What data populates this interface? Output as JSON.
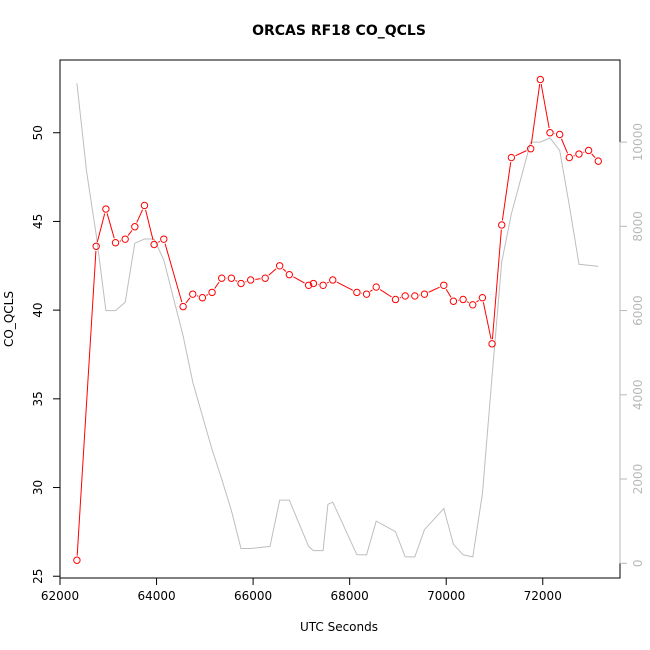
{
  "chart_data": {
    "type": "line",
    "title": "ORCAS RF18 CO_QCLS",
    "xlabel": "UTC Seconds",
    "ylabel": "CO_QCLS",
    "xlim": [
      62000,
      73600
    ],
    "ylim": [
      24.9,
      54.1
    ],
    "y2lim": [
      -350,
      11950
    ],
    "x_ticks": [
      62000,
      64000,
      66000,
      68000,
      70000,
      72000
    ],
    "x_tick_labels": [
      "62000",
      "64000",
      "66000",
      "68000",
      "70000",
      "72000"
    ],
    "y_ticks": [
      25,
      30,
      35,
      40,
      45,
      50
    ],
    "y_tick_labels": [
      "25",
      "30",
      "35",
      "40",
      "45",
      "50"
    ],
    "y2_ticks": [
      0,
      2000,
      4000,
      6000,
      8000,
      10000
    ],
    "y2_tick_labels": [
      "0",
      "2000",
      "4000",
      "6000",
      "8000",
      "10000"
    ],
    "colors": {
      "primary": "#ff0000",
      "secondary": "#bebebe"
    },
    "series": [
      {
        "axis": "left",
        "style": "line-points",
        "x": [
          62350,
          62750,
          62950,
          63150,
          63350,
          63550,
          63750,
          63950,
          64150,
          64550,
          64750,
          64950,
          65150,
          65350,
          65550,
          65750,
          65950,
          66250,
          66550,
          66750,
          67150,
          67250,
          67450,
          67650,
          68150,
          68350,
          68550,
          68950,
          69150,
          69350,
          69550,
          69950,
          70150,
          70350,
          70550,
          70750,
          70950,
          71150,
          71350,
          71750,
          71950,
          72150,
          72350,
          72550,
          72750,
          72950,
          73150
        ],
        "values": [
          25.9,
          43.6,
          45.7,
          43.8,
          44.0,
          44.7,
          45.9,
          43.7,
          44.0,
          40.2,
          40.9,
          40.7,
          41.0,
          41.8,
          41.8,
          41.5,
          41.7,
          41.8,
          42.5,
          42.0,
          41.4,
          41.5,
          41.4,
          41.7,
          41.0,
          40.9,
          41.3,
          40.6,
          40.8,
          40.8,
          40.9,
          41.4,
          40.5,
          40.6,
          40.3,
          40.7,
          38.1,
          44.8,
          48.6,
          49.1,
          53.0,
          50.0,
          49.9,
          48.6,
          48.8,
          49.0,
          48.4
        ]
      },
      {
        "axis": "right",
        "style": "line",
        "x": [
          62350,
          62550,
          62750,
          62950,
          63150,
          63350,
          63550,
          63750,
          63950,
          64150,
          64350,
          64550,
          64750,
          64950,
          65150,
          65350,
          65550,
          65750,
          65950,
          66350,
          66550,
          66750,
          67150,
          67250,
          67450,
          67550,
          67650,
          68150,
          68350,
          68550,
          68950,
          69150,
          69350,
          69550,
          69950,
          70150,
          70350,
          70550,
          70750,
          70950,
          71150,
          71350,
          71750,
          71950,
          72150,
          72350,
          72550,
          72750,
          73150
        ],
        "values": [
          11400,
          9300,
          7800,
          6000,
          6000,
          6200,
          7600,
          7700,
          7700,
          7200,
          6300,
          5400,
          4300,
          3500,
          2700,
          2000,
          1250,
          350,
          350,
          400,
          1500,
          1500,
          400,
          300,
          300,
          1400,
          1450,
          200,
          200,
          1000,
          750,
          150,
          150,
          800,
          1300,
          450,
          200,
          150,
          1650,
          4450,
          7150,
          8300,
          10000,
          10000,
          10100,
          9800,
          8500,
          7100,
          7050
        ]
      }
    ]
  }
}
